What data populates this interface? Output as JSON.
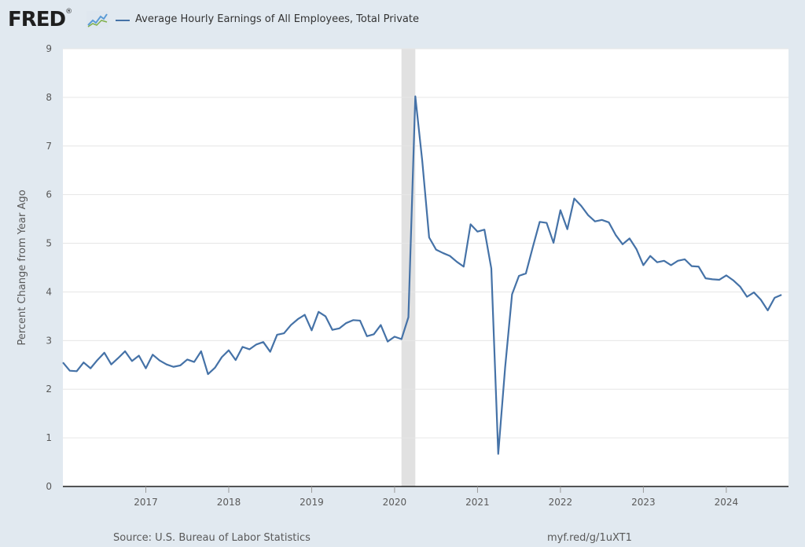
{
  "brand": {
    "logo_text": "FRED",
    "registered_mark": "®"
  },
  "colors": {
    "series": "#4572a7",
    "recession": "#e1e1e1",
    "plot_bg": "#ffffff",
    "page_bg": "#e1e9f0"
  },
  "chart_data": {
    "type": "line",
    "title": "Average Hourly Earnings of All Employees, Total Private",
    "xlabel": "",
    "ylabel": "Percent Change from Year Ago",
    "xlim": [
      2016.0,
      2024.75
    ],
    "ylim": [
      0,
      9
    ],
    "yticks": [
      0,
      1,
      2,
      3,
      4,
      5,
      6,
      7,
      8,
      9
    ],
    "xticks": [
      2017,
      2018,
      2019,
      2020,
      2021,
      2022,
      2023,
      2024
    ],
    "xtick_labels": [
      "2017",
      "2018",
      "2019",
      "2020",
      "2021",
      "2022",
      "2023",
      "2024"
    ],
    "recession_shading": [
      {
        "start": 2020.083,
        "end": 2020.25
      }
    ],
    "grid": "horizontal",
    "series": [
      {
        "name": "Average Hourly Earnings of All Employees, Total Private",
        "start": 2016.0,
        "step": 0.08333,
        "values": [
          2.55,
          2.38,
          2.37,
          2.55,
          2.43,
          2.6,
          2.75,
          2.51,
          2.64,
          2.78,
          2.58,
          2.69,
          2.43,
          2.71,
          2.59,
          2.51,
          2.46,
          2.49,
          2.61,
          2.56,
          2.78,
          2.31,
          2.44,
          2.66,
          2.8,
          2.6,
          2.87,
          2.82,
          2.92,
          2.97,
          2.77,
          3.12,
          3.15,
          3.32,
          3.44,
          3.53,
          3.21,
          3.59,
          3.5,
          3.22,
          3.25,
          3.36,
          3.42,
          3.41,
          3.09,
          3.13,
          3.32,
          2.98,
          3.08,
          3.03,
          3.48,
          8.02,
          6.7,
          5.12,
          4.87,
          4.8,
          4.74,
          4.62,
          4.52,
          5.39,
          5.24,
          5.28,
          4.48,
          0.67,
          2.45,
          3.95,
          4.33,
          4.38,
          4.92,
          5.44,
          5.42,
          5.01,
          5.68,
          5.29,
          5.92,
          5.77,
          5.58,
          5.45,
          5.48,
          5.43,
          5.17,
          4.98,
          5.1,
          4.88,
          4.55,
          4.74,
          4.61,
          4.64,
          4.55,
          4.64,
          4.67,
          4.53,
          4.52,
          4.28,
          4.26,
          4.25,
          4.34,
          4.24,
          4.11,
          3.9,
          3.99,
          3.84,
          3.62,
          3.88,
          3.94
        ]
      }
    ]
  },
  "footer": {
    "source": "Source: U.S. Bureau of Labor Statistics",
    "link": "myf.red/g/1uXT1"
  }
}
